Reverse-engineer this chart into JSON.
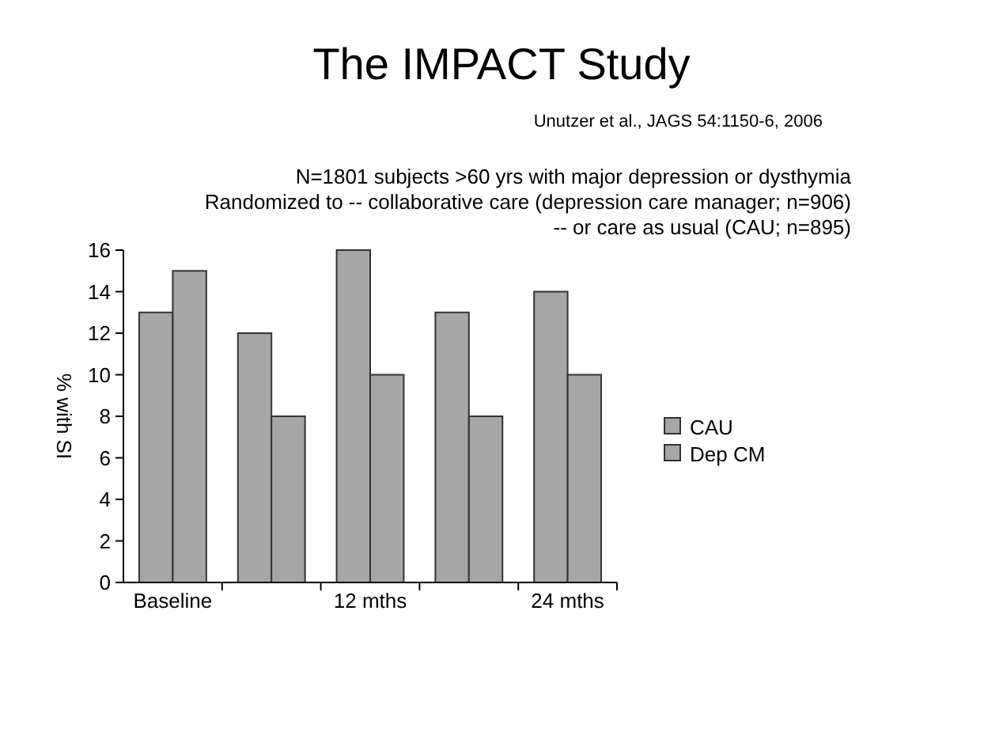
{
  "chart_data": {
    "type": "bar",
    "title": "The IMPACT Study",
    "subtitle": "Unutzer et al., JAGS 54:1150-6, 2006",
    "ylabel": "% with SI",
    "annotations": [
      "N=1801 subjects >60 yrs with major depression or dysthymia",
      "Randomized to -- collaborative care (depression care manager; n=906)",
      "-- or care as usual (CAU; n=895)"
    ],
    "categories": [
      "Baseline",
      null,
      "12 mths",
      null,
      "24 mths"
    ],
    "series": [
      {
        "name": "CAU",
        "color": "#a6a6a6",
        "values": [
          13,
          12,
          16,
          13,
          14
        ]
      },
      {
        "name": "Dep CM",
        "color": "#a6a6a6",
        "values": [
          15,
          8,
          10,
          8,
          10
        ]
      }
    ],
    "ylim": [
      0,
      16
    ],
    "yticks": [
      0,
      2,
      4,
      6,
      8,
      10,
      12,
      14,
      16
    ],
    "grid": false,
    "legend": "right"
  }
}
